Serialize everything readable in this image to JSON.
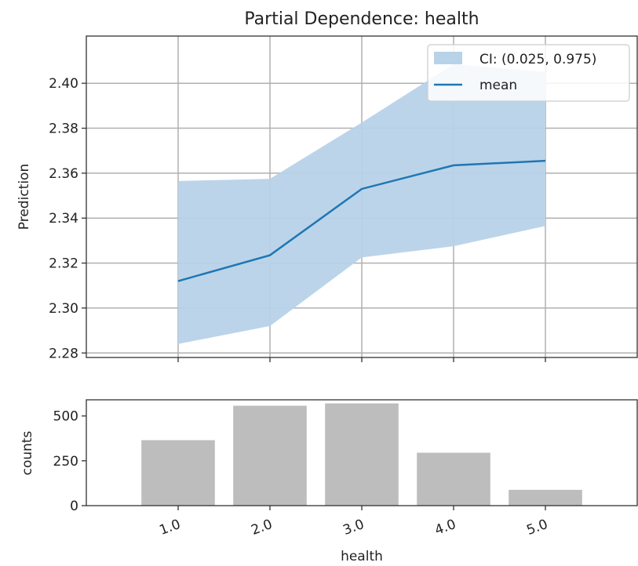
{
  "chart_data": [
    {
      "type": "line",
      "title": "Partial Dependence: health",
      "xlabel": "",
      "ylabel": "Prediction",
      "x": [
        1.0,
        2.0,
        3.0,
        4.0,
        5.0
      ],
      "xlim": [
        0.0,
        6.0
      ],
      "ylim": [
        2.278,
        2.421
      ],
      "yticks": [
        2.28,
        2.3,
        2.32,
        2.34,
        2.36,
        2.38,
        2.4
      ],
      "ytick_labels": [
        "2.28",
        "2.30",
        "2.32",
        "2.34",
        "2.36",
        "2.38",
        "2.40"
      ],
      "grid": true,
      "legend_position": "top-right",
      "series": [
        {
          "name": "mean",
          "kind": "line",
          "values": [
            2.312,
            2.3235,
            2.353,
            2.3635,
            2.3655
          ],
          "color": "#1f77b4"
        }
      ],
      "band": {
        "name": "CI: (0.025, 0.975)",
        "color": "#b8d2e8",
        "lower": [
          2.284,
          2.292,
          2.3225,
          2.3275,
          2.3365
        ],
        "upper": [
          2.3565,
          2.3575,
          2.3825,
          2.4085,
          2.405
        ]
      }
    },
    {
      "type": "bar",
      "title": "",
      "xlabel": "health",
      "ylabel": "counts",
      "categories": [
        "1.0",
        "2.0",
        "3.0",
        "4.0",
        "5.0"
      ],
      "values": [
        365,
        557,
        570,
        295,
        88
      ],
      "ylim": [
        0,
        590
      ],
      "yticks": [
        0,
        250,
        500
      ],
      "ytick_labels": [
        "0",
        "250",
        "500"
      ],
      "bar_color": "#bdbdbd"
    }
  ]
}
